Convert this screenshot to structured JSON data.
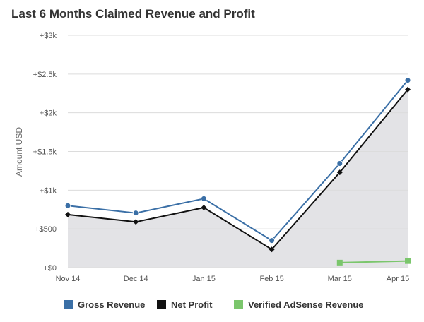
{
  "chart_data": {
    "type": "line",
    "title": "Last 6 Months Claimed Revenue and Profit",
    "xlabel": "",
    "ylabel": "Amount USD",
    "categories": [
      "Nov 14",
      "Dec 14",
      "Jan 15",
      "Feb 15",
      "Mar 15",
      "Apr 15"
    ],
    "ylim": [
      0,
      3000
    ],
    "yticks": [
      0,
      500,
      1000,
      1500,
      2000,
      2500,
      3000
    ],
    "ytick_labels": [
      "+$0",
      "+$500",
      "+$1k",
      "+$1.5k",
      "+$2k",
      "+$2.5k",
      "+$3k"
    ],
    "grid": true,
    "legend_position": "bottom",
    "series": [
      {
        "name": "Gross Revenue",
        "color": "#3a6fa6",
        "marker": "circle",
        "values": [
          800,
          705,
          890,
          350,
          1345,
          2420
        ]
      },
      {
        "name": "Net Profit",
        "color": "#111111",
        "marker": "diamond",
        "area": true,
        "values": [
          685,
          590,
          775,
          235,
          1230,
          2300
        ]
      },
      {
        "name": "Verified AdSense Revenue",
        "color": "#7bc66c",
        "marker": "square",
        "values": [
          null,
          null,
          null,
          null,
          65,
          85
        ]
      }
    ]
  }
}
